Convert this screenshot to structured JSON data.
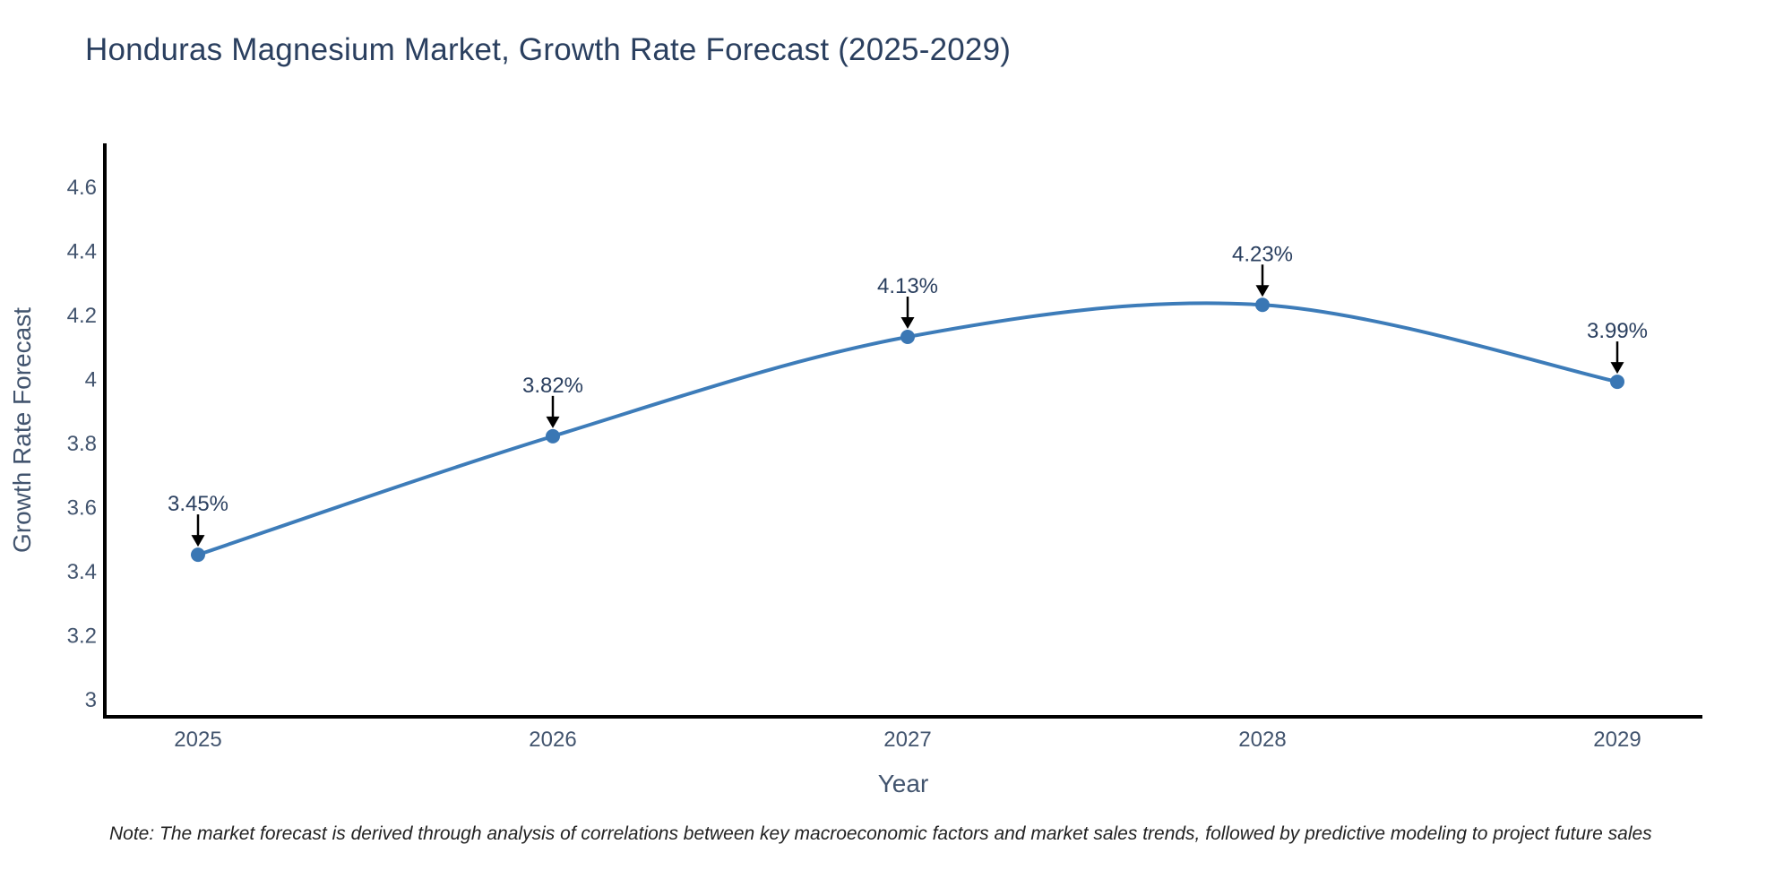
{
  "title": "Honduras Magnesium Market, Growth Rate Forecast (2025-2029)",
  "note": "Note: The market forecast is derived through analysis of correlations between key macroeconomic factors and market sales trends, followed by predictive modeling to project future sales",
  "chart_data": {
    "type": "line",
    "line_shape": "spline",
    "title": "Honduras Magnesium Market, Growth Rate Forecast (2025-2029)",
    "xlabel": "Year",
    "ylabel": "Growth Rate Forecast",
    "categories": [
      "2025",
      "2026",
      "2027",
      "2028",
      "2029"
    ],
    "values": [
      3.45,
      3.82,
      4.13,
      4.23,
      3.99
    ],
    "point_labels": [
      "3.45%",
      "3.82%",
      "4.13%",
      "4.23%",
      "3.99%"
    ],
    "ytick_labels": [
      "3",
      "3.2",
      "3.4",
      "3.6",
      "3.8",
      "4",
      "4.2",
      "4.4",
      "4.6"
    ],
    "ytick_values": [
      3,
      3.2,
      3.4,
      3.6,
      3.8,
      4,
      4.2,
      4.4,
      4.6
    ],
    "ylim": [
      3,
      4.73
    ],
    "grid": false,
    "legend": "none",
    "markers": true,
    "annotation_style": "value label above each point with black down-arrow",
    "colors": {
      "line": "#3d7cb9",
      "marker": "#3a77b4",
      "axis_line": "#000000",
      "title_text": "#2a3f5f",
      "axis_title_text": "#42546e",
      "tick_text": "#42546e",
      "annotation_text": "#2a3f5f",
      "arrow": "#000000",
      "note_text": "#222222",
      "background": "#ffffff"
    }
  }
}
